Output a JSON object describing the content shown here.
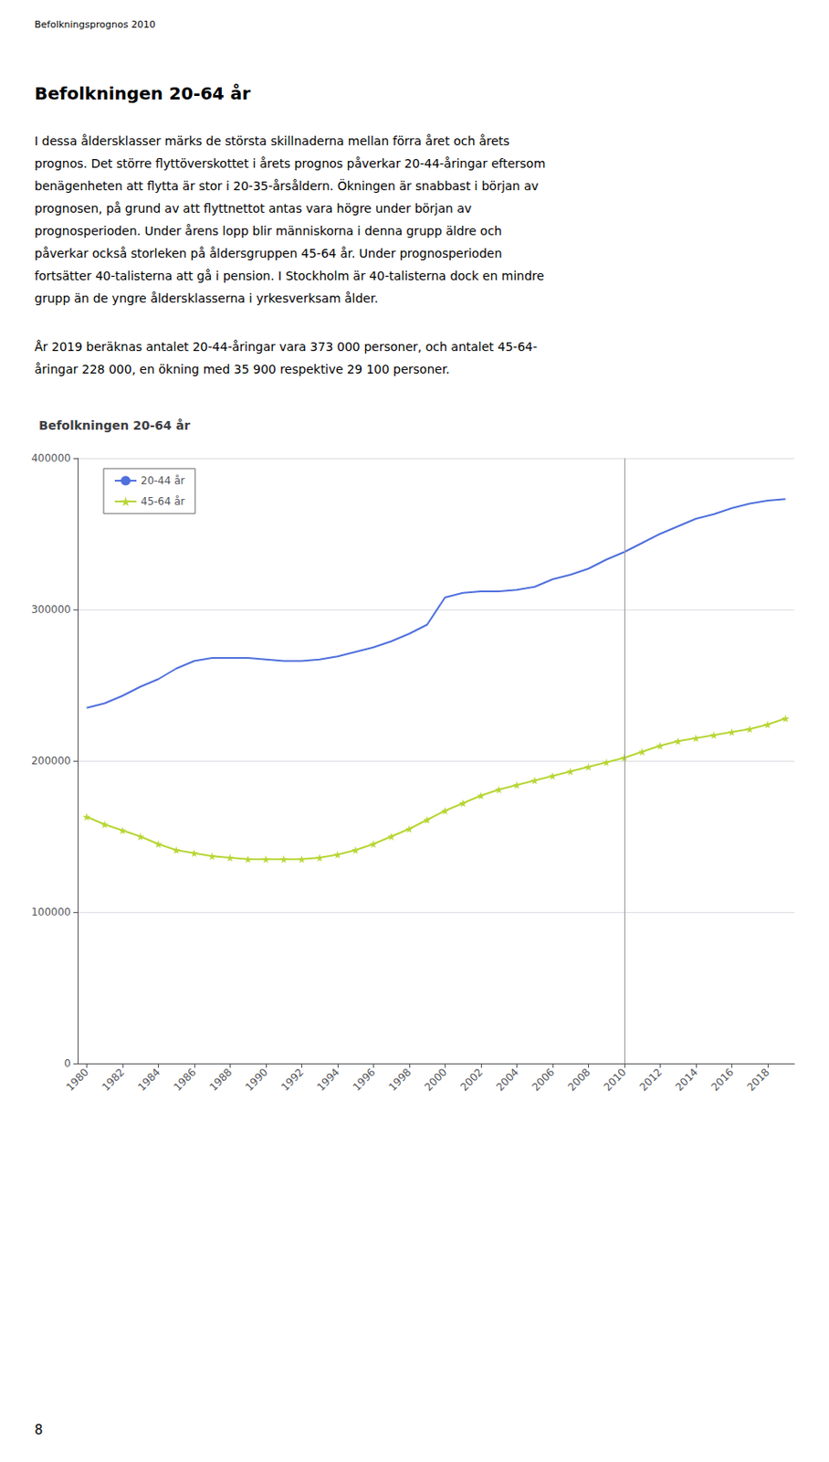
{
  "header": "Befolkningsprognos 2010",
  "section_title": "Befolkningen 20-64 år",
  "body_lines": [
    "I dessa åldersklasser märks de största skillnaderna mellan förra året och årets",
    "prognos. Det större flyttöverskottet i årets prognos påverkar 20-44-åringar eftersom",
    "benägenheten att flytta är stor i 20-35-årsåldern. Ökningen är snabbast i början av",
    "prognosen, på grund av att flyttnettot antas vara högre under början av",
    "prognosperioden. Under årens lopp blir människorna i denna grupp äldre och",
    "påverkar också storleken på åldersgruppen 45-64 år. Under prognosperioden",
    "fortsätter 40-talisterna att gå i pension. I Stockholm är 40-talisterna dock en mindre",
    "grupp än de yngre åldersklasserna i yrkesverksam ålder."
  ],
  "summary_lines": [
    "År 2019 beräknas antalet 20-44-åringar vara 373 000 personer, och antalet 45-64-",
    "åringar 228 000, en ökning med 35 900 respektive 29 100 personer."
  ],
  "page_number": "8",
  "chart_data": {
    "type": "line",
    "title": "Befolkningen 20-64 år",
    "x": [
      1980,
      1981,
      1982,
      1983,
      1984,
      1985,
      1986,
      1987,
      1988,
      1989,
      1990,
      1991,
      1992,
      1993,
      1994,
      1995,
      1996,
      1997,
      1998,
      1999,
      2000,
      2001,
      2002,
      2003,
      2004,
      2005,
      2006,
      2007,
      2008,
      2009,
      2010,
      2011,
      2012,
      2013,
      2014,
      2015,
      2016,
      2017,
      2018,
      2019
    ],
    "series": [
      {
        "name": "20-44 år",
        "marker": "none",
        "values": [
          235000,
          238000,
          243000,
          249000,
          254000,
          261000,
          266000,
          268000,
          268000,
          268000,
          267000,
          266000,
          266000,
          267000,
          269000,
          272000,
          275000,
          279000,
          284000,
          290000,
          308000,
          311000,
          312000,
          312000,
          313000,
          315000,
          320000,
          323000,
          327000,
          333000,
          338000,
          344000,
          350000,
          355000,
          360000,
          363000,
          367000,
          370000,
          372000,
          373000
        ]
      },
      {
        "name": "45-64 år",
        "marker": "star",
        "values": [
          163000,
          158000,
          154000,
          150000,
          145000,
          141000,
          139000,
          137000,
          136000,
          135000,
          135000,
          135000,
          135000,
          136000,
          138000,
          141000,
          145000,
          150000,
          155000,
          161000,
          167000,
          172000,
          177000,
          181000,
          184000,
          187000,
          190000,
          193000,
          196000,
          199000,
          202000,
          206000,
          210000,
          213000,
          215000,
          217000,
          219000,
          221000,
          224000,
          228000
        ]
      }
    ],
    "vlines": [
      2010
    ],
    "xlim": [
      1979.5,
      2019.5
    ],
    "xticks": [
      1980,
      1982,
      1984,
      1986,
      1988,
      1990,
      1992,
      1994,
      1996,
      1998,
      2000,
      2002,
      2004,
      2006,
      2008,
      2010,
      2012,
      2014,
      2016,
      2018
    ],
    "ylim": [
      0,
      400000
    ],
    "yticks": [
      0,
      100000,
      200000,
      300000,
      400000
    ],
    "grid": true,
    "legend": "upper left"
  }
}
